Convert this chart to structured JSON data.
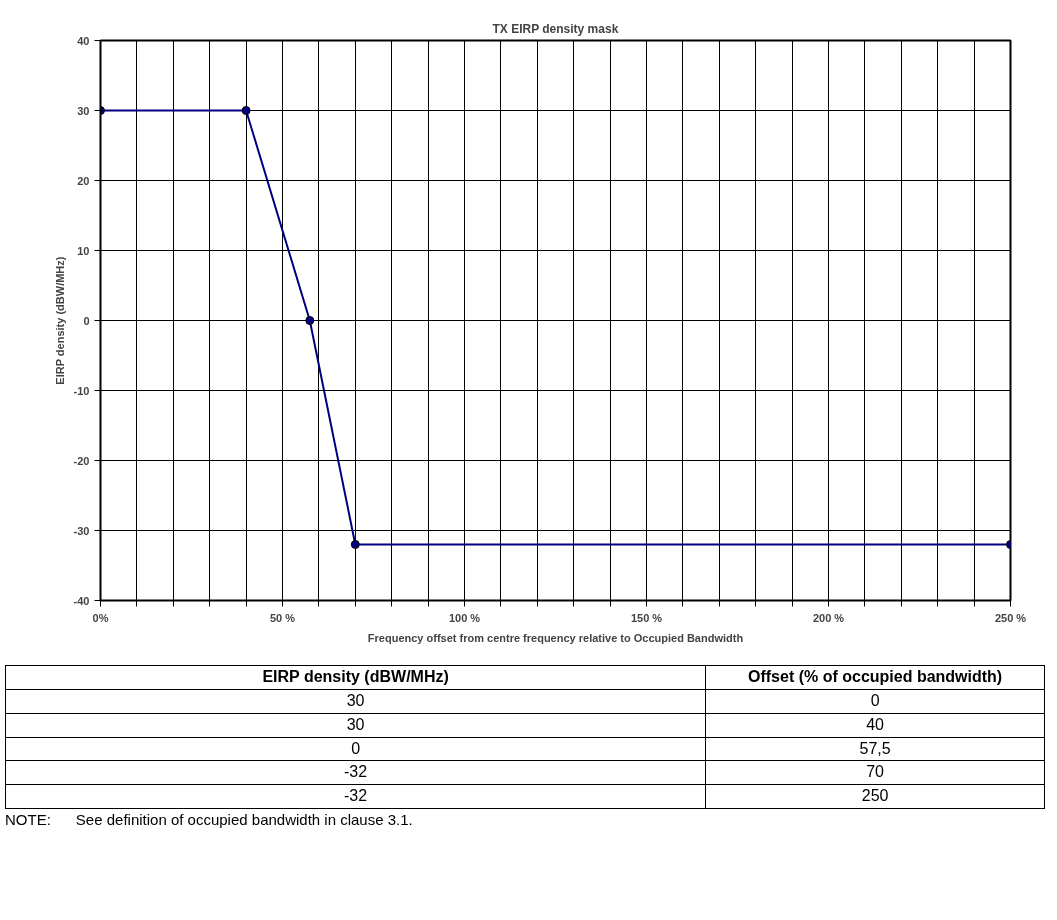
{
  "chart_data": {
    "type": "line",
    "title": "TX EIRP density mask",
    "xlabel": "Frequency offset from centre frequency relative to Occupied Bandwidth",
    "ylabel": "EIRP density (dBW/MHz)",
    "x": [
      0,
      40,
      57.5,
      70,
      250
    ],
    "series": [
      {
        "color": "#000080",
        "values": [
          30,
          30,
          0,
          -32,
          -32
        ]
      }
    ],
    "xlim": [
      0,
      250
    ],
    "ylim": [
      -40,
      40
    ],
    "xticks": [
      {
        "value": 0,
        "label": "0%"
      },
      {
        "value": 10,
        "label": null
      },
      {
        "value": 20,
        "label": null
      },
      {
        "value": 30,
        "label": null
      },
      {
        "value": 40,
        "label": null
      },
      {
        "value": 50,
        "label": "50 %"
      },
      {
        "value": 60,
        "label": null
      },
      {
        "value": 70,
        "label": null
      },
      {
        "value": 80,
        "label": null
      },
      {
        "value": 90,
        "label": null
      },
      {
        "value": 100,
        "label": "100 %"
      },
      {
        "value": 110,
        "label": null
      },
      {
        "value": 120,
        "label": null
      },
      {
        "value": 130,
        "label": null
      },
      {
        "value": 140,
        "label": null
      },
      {
        "value": 150,
        "label": "150 %"
      },
      {
        "value": 160,
        "label": null
      },
      {
        "value": 170,
        "label": null
      },
      {
        "value": 180,
        "label": null
      },
      {
        "value": 190,
        "label": null
      },
      {
        "value": 200,
        "label": "200 %"
      },
      {
        "value": 210,
        "label": null
      },
      {
        "value": 220,
        "label": null
      },
      {
        "value": 230,
        "label": null
      },
      {
        "value": 240,
        "label": null
      },
      {
        "value": 250,
        "label": "250 %"
      }
    ],
    "yticks": [
      -40,
      -30,
      -20,
      -10,
      0,
      10,
      20,
      30,
      40
    ],
    "grid": true,
    "marker": "circle",
    "line_style": "solid",
    "annotations": [
      "EIRP density (dBW/MHz)",
      "Offset (% of occupied bandwidth)",
      "30",
      "0",
      "30",
      "40",
      "0",
      "57,5",
      "-32",
      "70",
      "-32",
      "250",
      "NOTE:      See definition of occupied bandwidth in clause 3.1."
    ]
  }
}
